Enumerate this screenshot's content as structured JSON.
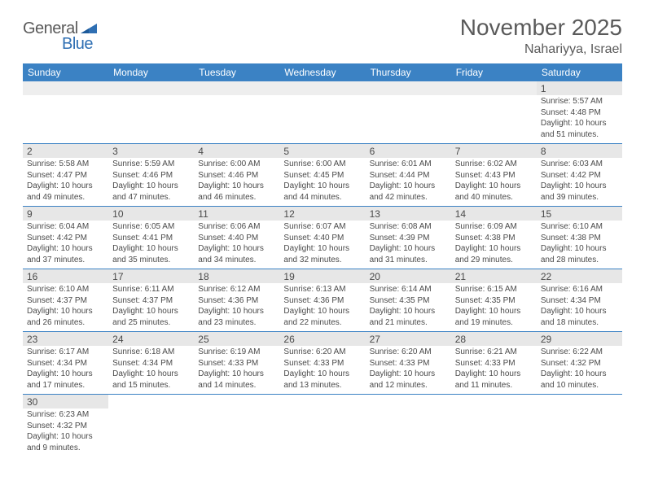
{
  "logo": {
    "general": "General",
    "blue": "Blue"
  },
  "title": "November 2025",
  "location": "Nahariyya, Israel",
  "colors": {
    "header_bg": "#3b82c4",
    "header_text": "#ffffff",
    "numrow_bg": "#e7e7e7",
    "border": "#3b82c4",
    "text": "#4a4a4a",
    "title_text": "#5a5a5a"
  },
  "day_headers": [
    "Sunday",
    "Monday",
    "Tuesday",
    "Wednesday",
    "Thursday",
    "Friday",
    "Saturday"
  ],
  "weeks": [
    {
      "nums": [
        "",
        "",
        "",
        "",
        "",
        "",
        "1"
      ],
      "data": [
        "",
        "",
        "",
        "",
        "",
        "",
        "Sunrise: 5:57 AM\nSunset: 4:48 PM\nDaylight: 10 hours and 51 minutes."
      ]
    },
    {
      "nums": [
        "2",
        "3",
        "4",
        "5",
        "6",
        "7",
        "8"
      ],
      "data": [
        "Sunrise: 5:58 AM\nSunset: 4:47 PM\nDaylight: 10 hours and 49 minutes.",
        "Sunrise: 5:59 AM\nSunset: 4:46 PM\nDaylight: 10 hours and 47 minutes.",
        "Sunrise: 6:00 AM\nSunset: 4:46 PM\nDaylight: 10 hours and 46 minutes.",
        "Sunrise: 6:00 AM\nSunset: 4:45 PM\nDaylight: 10 hours and 44 minutes.",
        "Sunrise: 6:01 AM\nSunset: 4:44 PM\nDaylight: 10 hours and 42 minutes.",
        "Sunrise: 6:02 AM\nSunset: 4:43 PM\nDaylight: 10 hours and 40 minutes.",
        "Sunrise: 6:03 AM\nSunset: 4:42 PM\nDaylight: 10 hours and 39 minutes."
      ]
    },
    {
      "nums": [
        "9",
        "10",
        "11",
        "12",
        "13",
        "14",
        "15"
      ],
      "data": [
        "Sunrise: 6:04 AM\nSunset: 4:42 PM\nDaylight: 10 hours and 37 minutes.",
        "Sunrise: 6:05 AM\nSunset: 4:41 PM\nDaylight: 10 hours and 35 minutes.",
        "Sunrise: 6:06 AM\nSunset: 4:40 PM\nDaylight: 10 hours and 34 minutes.",
        "Sunrise: 6:07 AM\nSunset: 4:40 PM\nDaylight: 10 hours and 32 minutes.",
        "Sunrise: 6:08 AM\nSunset: 4:39 PM\nDaylight: 10 hours and 31 minutes.",
        "Sunrise: 6:09 AM\nSunset: 4:38 PM\nDaylight: 10 hours and 29 minutes.",
        "Sunrise: 6:10 AM\nSunset: 4:38 PM\nDaylight: 10 hours and 28 minutes."
      ]
    },
    {
      "nums": [
        "16",
        "17",
        "18",
        "19",
        "20",
        "21",
        "22"
      ],
      "data": [
        "Sunrise: 6:10 AM\nSunset: 4:37 PM\nDaylight: 10 hours and 26 minutes.",
        "Sunrise: 6:11 AM\nSunset: 4:37 PM\nDaylight: 10 hours and 25 minutes.",
        "Sunrise: 6:12 AM\nSunset: 4:36 PM\nDaylight: 10 hours and 23 minutes.",
        "Sunrise: 6:13 AM\nSunset: 4:36 PM\nDaylight: 10 hours and 22 minutes.",
        "Sunrise: 6:14 AM\nSunset: 4:35 PM\nDaylight: 10 hours and 21 minutes.",
        "Sunrise: 6:15 AM\nSunset: 4:35 PM\nDaylight: 10 hours and 19 minutes.",
        "Sunrise: 6:16 AM\nSunset: 4:34 PM\nDaylight: 10 hours and 18 minutes."
      ]
    },
    {
      "nums": [
        "23",
        "24",
        "25",
        "26",
        "27",
        "28",
        "29"
      ],
      "data": [
        "Sunrise: 6:17 AM\nSunset: 4:34 PM\nDaylight: 10 hours and 17 minutes.",
        "Sunrise: 6:18 AM\nSunset: 4:34 PM\nDaylight: 10 hours and 15 minutes.",
        "Sunrise: 6:19 AM\nSunset: 4:33 PM\nDaylight: 10 hours and 14 minutes.",
        "Sunrise: 6:20 AM\nSunset: 4:33 PM\nDaylight: 10 hours and 13 minutes.",
        "Sunrise: 6:20 AM\nSunset: 4:33 PM\nDaylight: 10 hours and 12 minutes.",
        "Sunrise: 6:21 AM\nSunset: 4:33 PM\nDaylight: 10 hours and 11 minutes.",
        "Sunrise: 6:22 AM\nSunset: 4:32 PM\nDaylight: 10 hours and 10 minutes."
      ]
    },
    {
      "nums": [
        "30",
        "",
        "",
        "",
        "",
        "",
        ""
      ],
      "data": [
        "Sunrise: 6:23 AM\nSunset: 4:32 PM\nDaylight: 10 hours and 9 minutes.",
        "",
        "",
        "",
        "",
        "",
        ""
      ],
      "last": true
    }
  ]
}
